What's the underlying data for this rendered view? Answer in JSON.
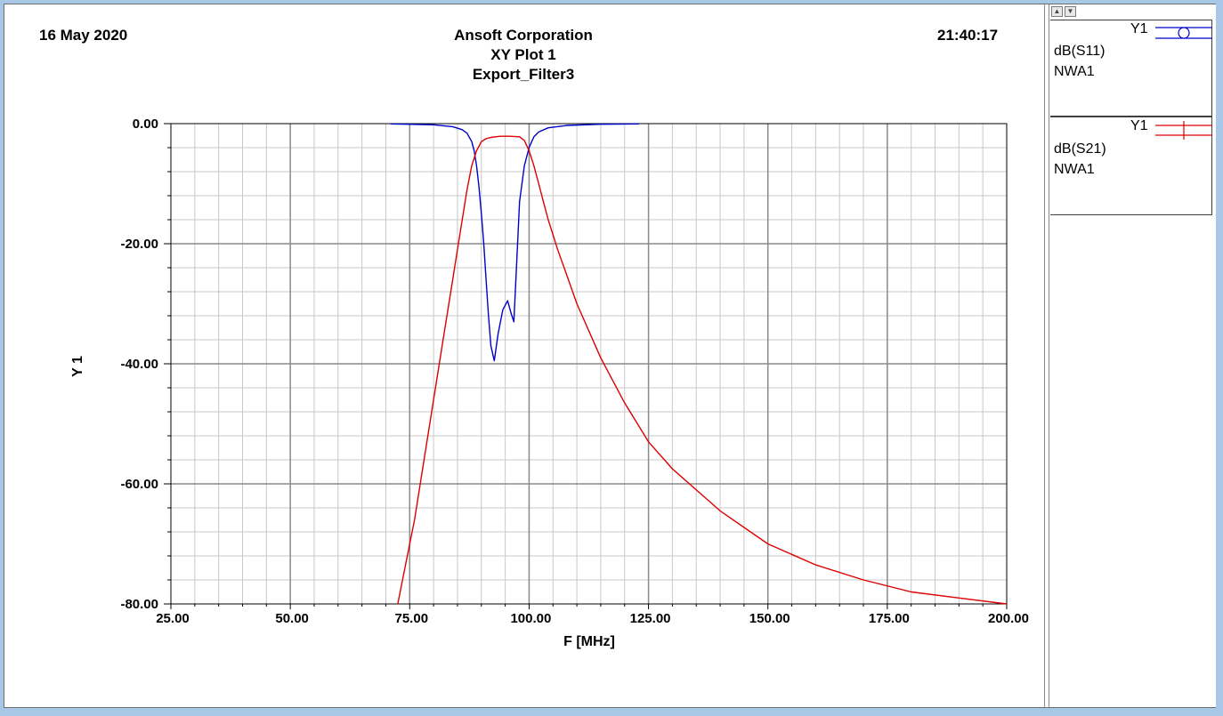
{
  "header": {
    "date": "16 May 2020",
    "time": "21:40:17",
    "company": "Ansoft Corporation",
    "plot_name": "XY Plot 1",
    "design": "Export_Filter3"
  },
  "legend": {
    "scroll_up": "▲",
    "scroll_down": "▼",
    "entries": [
      {
        "axis": "Y1",
        "trace": "dB(S11)",
        "source": "NWA1",
        "color": "#0000cc",
        "marker": "circle"
      },
      {
        "axis": "Y1",
        "trace": "dB(S21)",
        "source": "NWA1",
        "color": "#dd0000",
        "marker": "cross"
      }
    ]
  },
  "chart_data": {
    "type": "line",
    "xlabel": "F [MHz]",
    "ylabel": "Y 1",
    "xlim": [
      25,
      200
    ],
    "ylim": [
      -80,
      0
    ],
    "xticks": [
      25,
      50,
      75,
      100,
      125,
      150,
      175,
      200
    ],
    "xtick_labels": [
      "25.00",
      "50.00",
      "75.00",
      "100.00",
      "125.00",
      "150.00",
      "175.00",
      "200.00"
    ],
    "yticks": [
      0,
      -20,
      -40,
      -60,
      -80
    ],
    "ytick_labels": [
      "0.00",
      "-20.00",
      "-40.00",
      "-60.00",
      "-80.00"
    ],
    "grid": true,
    "series": [
      {
        "name": "dB(S11)",
        "color": "#0000cc",
        "x": [
          71,
          80,
          84,
          86,
          87,
          88,
          88.5,
          89,
          89.5,
          90,
          90.5,
          91,
          91.5,
          92,
          92.7,
          93.5,
          94.5,
          95.5,
          96.2,
          96.8,
          97.3,
          98,
          99,
          100,
          101,
          102,
          104,
          108,
          115,
          123
        ],
        "y": [
          -0.05,
          -0.2,
          -0.5,
          -1.0,
          -1.6,
          -3.0,
          -4.5,
          -7.0,
          -10.5,
          -15.0,
          -20.0,
          -26.0,
          -32.0,
          -37.0,
          -39.5,
          -35.0,
          -31.0,
          -29.5,
          -31.5,
          -33.0,
          -25.0,
          -13.0,
          -7.0,
          -4.0,
          -2.2,
          -1.4,
          -0.7,
          -0.3,
          -0.1,
          -0.05
        ]
      },
      {
        "name": "dB(S21)",
        "color": "#dd0000",
        "x": [
          72.5,
          74,
          76,
          78,
          80,
          82,
          84,
          85,
          86,
          87,
          88,
          89,
          90,
          91,
          92,
          93,
          94,
          96,
          98,
          99,
          100,
          101,
          102,
          103,
          104,
          106,
          108,
          110,
          115,
          120,
          125,
          130,
          140,
          150,
          160,
          170,
          180,
          190,
          200
        ],
        "y": [
          -80,
          -74,
          -66,
          -56,
          -46,
          -36,
          -26,
          -21,
          -16,
          -11,
          -7,
          -4.5,
          -3.0,
          -2.5,
          -2.3,
          -2.2,
          -2.1,
          -2.1,
          -2.2,
          -2.8,
          -4.5,
          -7.0,
          -10.0,
          -13.0,
          -16.0,
          -21.0,
          -25.5,
          -30.0,
          -39.0,
          -46.5,
          -53.0,
          -57.5,
          -64.5,
          -70.0,
          -73.5,
          -76.0,
          -78.0,
          -79.0,
          -80.0
        ]
      }
    ]
  }
}
